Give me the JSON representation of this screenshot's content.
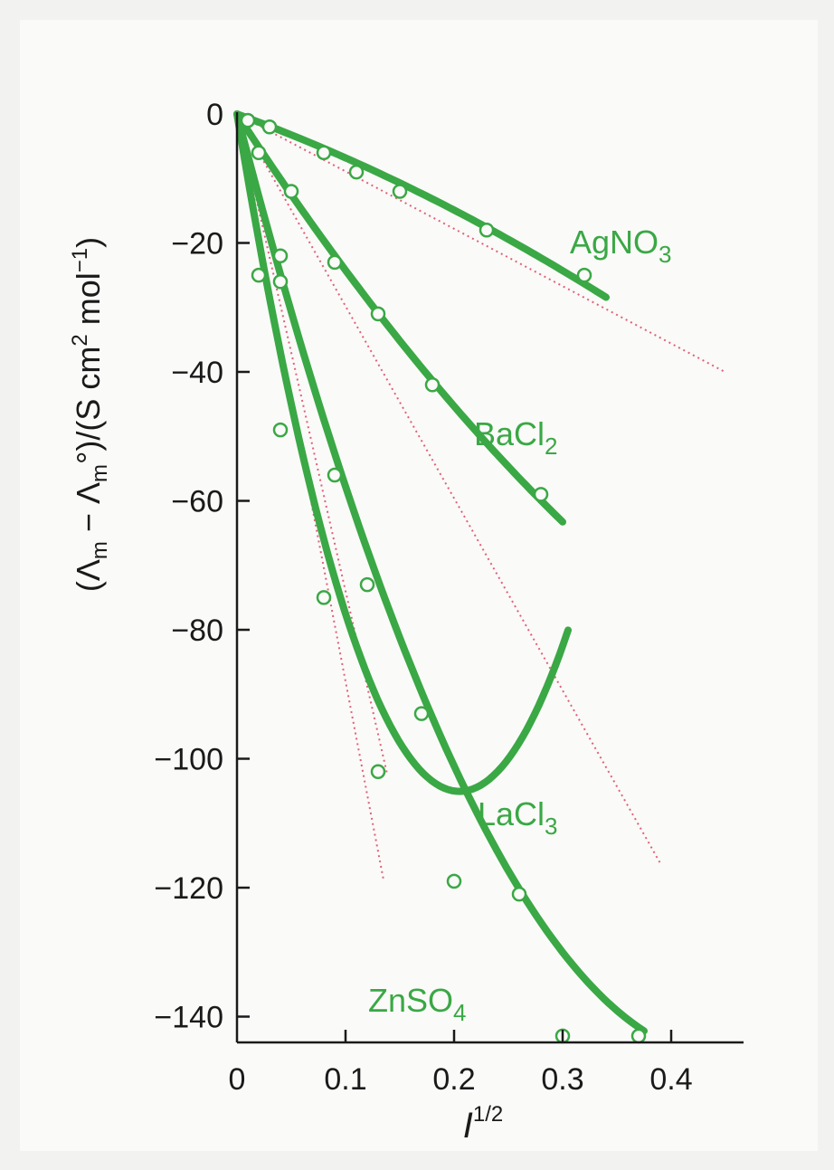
{
  "chart_data": {
    "type": "scatter",
    "xlabel": {
      "base": "I",
      "sup": "1/2"
    },
    "ylabel": "(Λm − Λm°)/(S cm2 mol−1)",
    "ylabel_parts": {
      "open": "(Λ",
      "sub1": "m",
      "minus": " − Λ",
      "sub2": "m",
      "deg": "°)/(S cm",
      "sup1": "2",
      "mol": " mol",
      "sup2": "−1",
      "close": ")"
    },
    "xlim": [
      0,
      0.45
    ],
    "ylim": [
      -143,
      0
    ],
    "x_ticks": [
      0,
      0.1,
      0.2,
      0.3,
      0.4
    ],
    "x_tick_labels": [
      "0",
      "0.1",
      "0.2",
      "0.3",
      "0.4"
    ],
    "y_ticks": [
      0,
      -20,
      -40,
      -60,
      -80,
      -100,
      -120,
      -140
    ],
    "y_tick_labels": [
      "0",
      "−20",
      "−40",
      "−60",
      "−80",
      "−100",
      "−120",
      "−140"
    ],
    "grid": false,
    "colors": {
      "series": "#3aa845",
      "limiting_law": "#e0607a",
      "axis": "#1a1a1a"
    },
    "series": [
      {
        "name": "AgNO3",
        "label": {
          "text": "AgNO",
          "sub": "3"
        },
        "points": [
          [
            0.01,
            -1
          ],
          [
            0.03,
            -2
          ],
          [
            0.08,
            -6
          ],
          [
            0.11,
            -9
          ],
          [
            0.15,
            -12
          ],
          [
            0.23,
            -18
          ],
          [
            0.32,
            -25
          ]
        ],
        "curve_coef": [
          -61.5,
          -65
        ],
        "curve_end": 0.34,
        "limiting_slope": -89,
        "limiting_end": 0.45
      },
      {
        "name": "BaCl2",
        "label": {
          "text": "BaCl",
          "sub": "2"
        },
        "points": [
          [
            0.01,
            -1
          ],
          [
            0.02,
            -6
          ],
          [
            0.05,
            -12
          ],
          [
            0.09,
            -23
          ],
          [
            0.13,
            -31
          ],
          [
            0.18,
            -42
          ],
          [
            0.28,
            -59
          ]
        ],
        "curve_coef": [
          -258,
          157
        ],
        "curve_end": 0.3,
        "limiting_slope": -298,
        "limiting_end": 0.39
      },
      {
        "name": "LaCl3",
        "label": {
          "text": "LaCl",
          "sub": "3"
        },
        "points": [
          [
            0.02,
            -25
          ],
          [
            0.04,
            -26
          ],
          [
            0.09,
            -56
          ],
          [
            0.12,
            -73
          ],
          [
            0.17,
            -93
          ],
          [
            0.26,
            -121
          ],
          [
            0.37,
            -143
          ]
        ],
        "curve_coef": [
          -650,
          722
        ],
        "curve_end": 0.375,
        "limiting_slope": -740,
        "limiting_end": 0.138
      },
      {
        "name": "ZnSO4",
        "label": {
          "text": "ZnSO",
          "sub": "4"
        },
        "points": [
          [
            0.04,
            -22
          ],
          [
            0.04,
            -49
          ],
          [
            0.08,
            -75
          ],
          [
            0.13,
            -102
          ],
          [
            0.2,
            -119
          ],
          [
            0.3,
            -143
          ]
        ],
        "curve_coef": [
          -1025,
          2500
        ],
        "curve_end": 0.305,
        "limiting_slope": -880,
        "limiting_end": 0.135
      }
    ]
  }
}
